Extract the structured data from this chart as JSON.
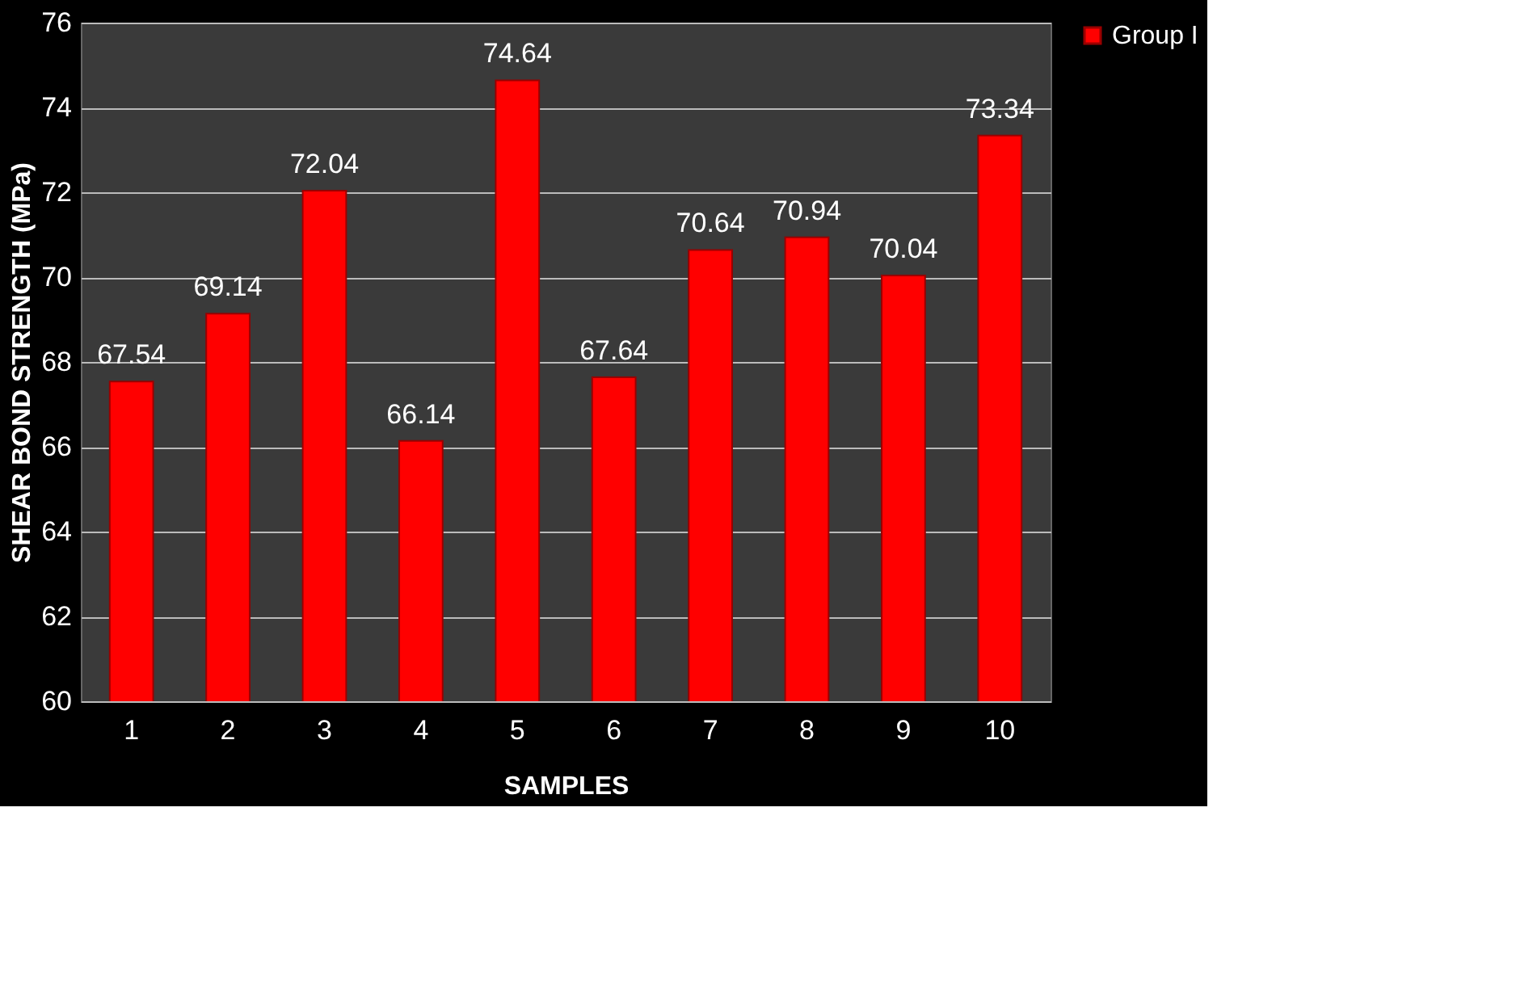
{
  "chart_data": {
    "type": "bar",
    "xlabel": "SAMPLES",
    "ylabel": "SHEAR BOND STRENGTH (MPa)",
    "categories": [
      "1",
      "2",
      "3",
      "4",
      "5",
      "6",
      "7",
      "8",
      "9",
      "10"
    ],
    "series": [
      {
        "name": "Group I",
        "color": "#ff0000",
        "values": [
          67.54,
          69.14,
          72.04,
          66.14,
          74.64,
          67.64,
          70.64,
          70.94,
          70.04,
          73.34
        ]
      }
    ],
    "ylim": [
      60,
      76
    ],
    "yticks": [
      60,
      62,
      64,
      66,
      68,
      70,
      72,
      74,
      76
    ],
    "grid": "y",
    "legend": "right",
    "data_labels": true
  }
}
